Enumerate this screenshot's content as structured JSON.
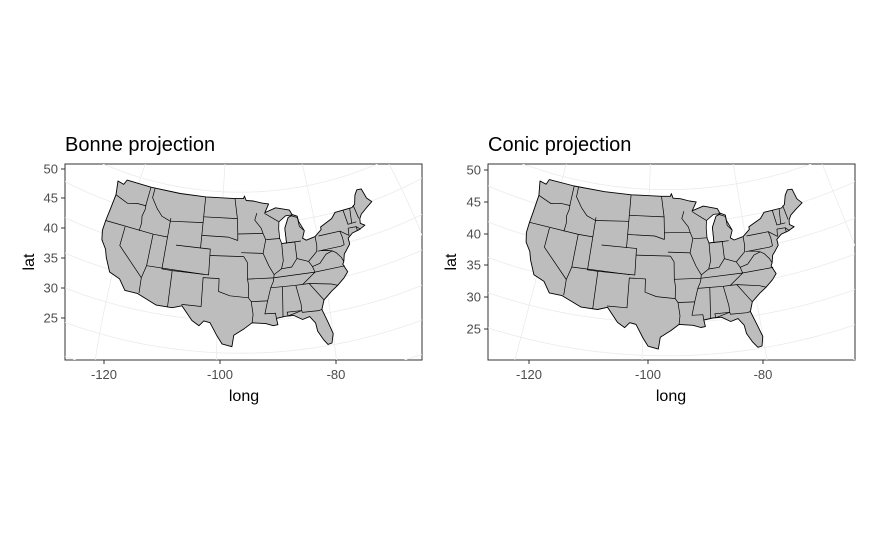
{
  "chart_data": [
    {
      "type": "map",
      "title": "Bonne projection",
      "xlabel": "long",
      "ylabel": "lat",
      "x_ticks": [
        -120,
        -100,
        -80
      ],
      "y_ticks": [
        25,
        30,
        35,
        40,
        45,
        50
      ],
      "x_tick_labels": [
        "-120",
        "-100",
        "-80"
      ],
      "y_tick_labels": [
        "25",
        "30",
        "35",
        "40",
        "45",
        "50"
      ],
      "xlim": [
        -127,
        -65
      ],
      "ylim": [
        21,
        51
      ],
      "fill_color": "#bdbdbd",
      "border_color": "#000000",
      "grid": true
    },
    {
      "type": "map",
      "title": "Conic projection",
      "xlabel": "long",
      "ylabel": "lat",
      "x_ticks": [
        -120,
        -100,
        -80
      ],
      "y_ticks": [
        25,
        30,
        35,
        40,
        45,
        50
      ],
      "x_tick_labels": [
        "-120",
        "-100",
        "-80"
      ],
      "y_tick_labels": [
        "25",
        "30",
        "35",
        "40",
        "45",
        "50"
      ],
      "xlim": [
        -127,
        -65
      ],
      "ylim": [
        20,
        51
      ],
      "fill_color": "#bdbdbd",
      "border_color": "#000000",
      "grid": true
    }
  ]
}
